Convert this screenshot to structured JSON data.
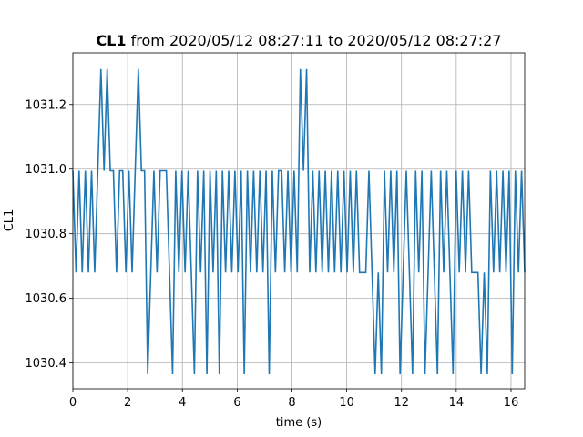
{
  "chart_data": {
    "type": "line",
    "title_bold": "CL1",
    "title_rest": " from 2020/05/12 08:27:11 to 2020/05/12 08:27:27",
    "xlabel": "time (s)",
    "ylabel": "CL1",
    "xlim": [
      0,
      16.5
    ],
    "ylim": [
      1030.32,
      1031.36
    ],
    "xticks": [
      0,
      2,
      4,
      6,
      8,
      10,
      12,
      14,
      16
    ],
    "yticks": [
      1030.4,
      1030.6,
      1030.8,
      1031.0,
      1031.2
    ],
    "ytick_labels": [
      "1030.4",
      "1030.6",
      "1030.8",
      "1031.0",
      "1031.2"
    ],
    "grid": true,
    "series": [
      {
        "color": "#1f77b4",
        "levels": {
          "low": 1030.365,
          "mid": 1030.68,
          "high": 1030.995,
          "peak": 1031.31
        },
        "states": [
          "high",
          "mid",
          "high",
          "mid",
          "high",
          "mid",
          "high",
          "mid",
          "high",
          "peak",
          "high",
          "peak",
          "high",
          "high",
          "mid",
          "high",
          "high",
          "mid",
          "high",
          "mid",
          "high",
          "peak",
          "high",
          "high",
          "low",
          "mid",
          "high",
          "mid",
          "high",
          "high",
          "high",
          "mid",
          "low",
          "high",
          "mid",
          "high",
          "mid",
          "high",
          "mid",
          "low",
          "high",
          "mid",
          "high",
          "low",
          "high",
          "mid",
          "high",
          "low",
          "high",
          "mid",
          "high",
          "mid",
          "high",
          "mid",
          "high",
          "low",
          "high",
          "mid",
          "high",
          "mid",
          "high",
          "mid",
          "high",
          "low",
          "high",
          "mid",
          "high",
          "high",
          "mid",
          "high",
          "mid",
          "high",
          "mid",
          "peak",
          "high",
          "peak",
          "mid",
          "high",
          "mid",
          "high",
          "mid",
          "high",
          "mid",
          "high",
          "mid",
          "high",
          "mid",
          "high",
          "mid",
          "high",
          "mid",
          "high",
          "mid",
          "mid",
          "mid",
          "high",
          "mid",
          "low",
          "mid",
          "low",
          "high",
          "mid",
          "high",
          "mid",
          "high",
          "low",
          "mid",
          "high",
          "mid",
          "low",
          "high",
          "mid",
          "high",
          "low",
          "mid",
          "high",
          "mid",
          "low",
          "high",
          "mid",
          "high",
          "mid",
          "low",
          "high",
          "mid",
          "high",
          "mid",
          "high",
          "mid",
          "mid",
          "mid",
          "low",
          "mid",
          "low",
          "high",
          "mid",
          "high",
          "mid",
          "high",
          "mid",
          "high",
          "low",
          "high",
          "mid",
          "high",
          "mid"
        ]
      }
    ]
  }
}
